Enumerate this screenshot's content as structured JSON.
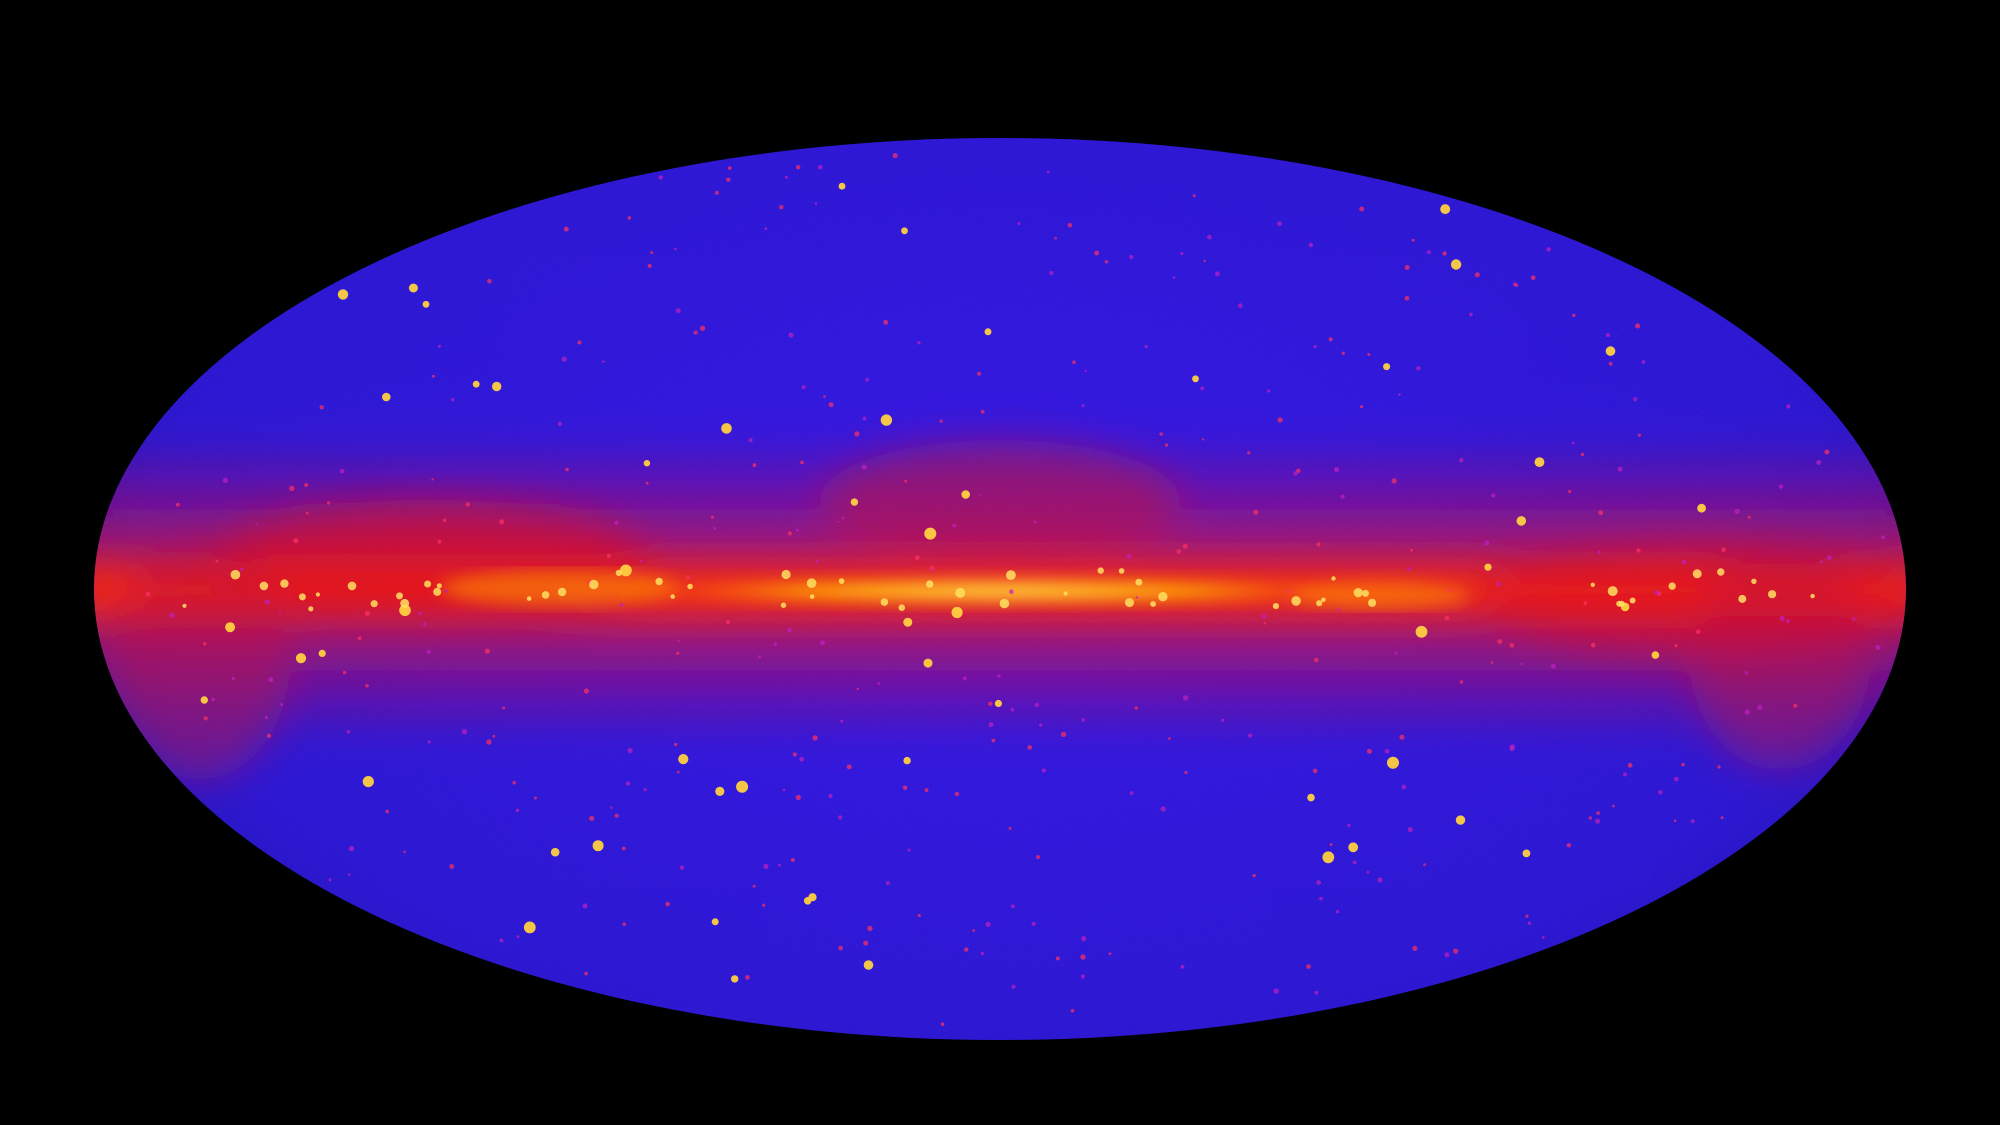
{
  "image": {
    "subject": "all-sky-map",
    "colors": {
      "background": "#000000",
      "sky": "#2a10e0",
      "sky_dark": "#1a0aa8",
      "diffuse": "#ff1a10",
      "band_core": "#ffd21a",
      "point_source": "#ffb020"
    }
  }
}
